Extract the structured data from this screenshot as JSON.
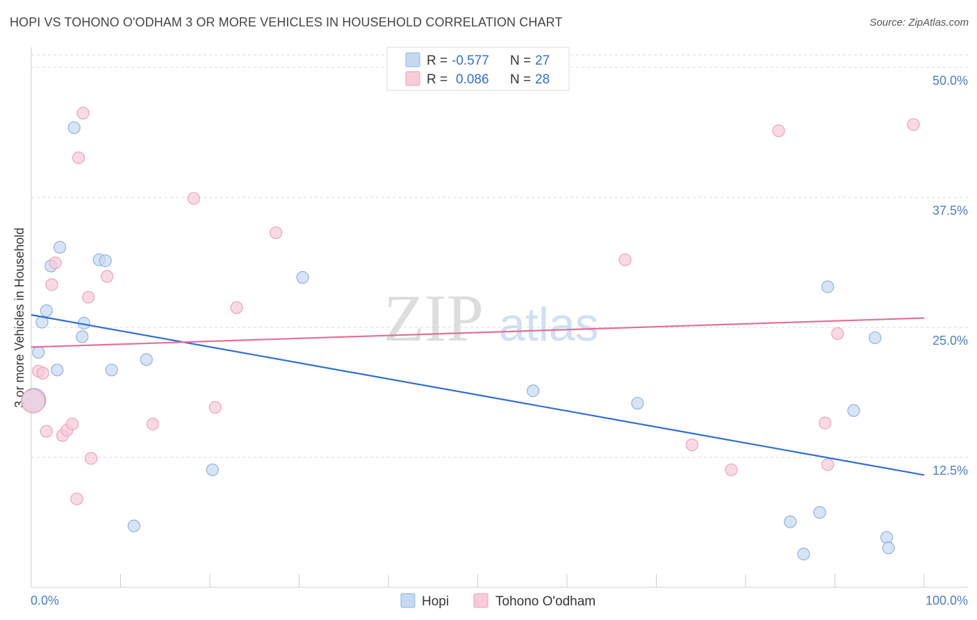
{
  "title": "HOPI VS TOHONO O'ODHAM 3 OR MORE VEHICLES IN HOUSEHOLD CORRELATION CHART",
  "source": "Source: ZipAtlas.com",
  "watermark": {
    "zip": "ZIP",
    "atlas": "atlas"
  },
  "colors": {
    "hopi_fill": "#c5d9f2",
    "hopi_stroke": "#8fb2e0",
    "hopi_line": "#2e6fd1",
    "tohono_fill": "#f7cbd8",
    "tohono_stroke": "#eba3ba",
    "tohono_line": "#e0709a",
    "tick": "#4a7cc4",
    "grid": "#d9d9d9"
  },
  "chart_data": {
    "type": "scatter",
    "title": "HOPI VS TOHONO O'ODHAM 3 OR MORE VEHICLES IN HOUSEHOLD CORRELATION CHART",
    "xlabel": "",
    "ylabel": "3 or more Vehicles in Household",
    "xlim": [
      0,
      100
    ],
    "ylim": [
      0,
      52
    ],
    "x_tick_labels": [
      "0.0%",
      "100.0%"
    ],
    "y_ticks": [
      12.5,
      25.0,
      37.5,
      50.0
    ],
    "y_tick_labels": [
      "12.5%",
      "25.0%",
      "37.5%",
      "50.0%"
    ],
    "grid": true,
    "legend_top": [
      {
        "series": "Hopi",
        "r_label": "R =",
        "r_value": "-0.577",
        "n_label": "N =",
        "n_value": "27"
      },
      {
        "series": "Tohono O'odham",
        "r_label": "R =",
        "r_value": "0.086",
        "n_label": "N =",
        "n_value": "28"
      }
    ],
    "legend_bottom": [
      "Hopi",
      "Tohono O'odham"
    ],
    "series": [
      {
        "name": "Hopi",
        "trend": {
          "x": [
            0,
            100
          ],
          "y": [
            26.2,
            10.8
          ]
        },
        "points": [
          {
            "x": 0.3,
            "y": 18.0,
            "big": true
          },
          {
            "x": 0.8,
            "y": 22.6
          },
          {
            "x": 1.2,
            "y": 25.5
          },
          {
            "x": 1.7,
            "y": 26.6
          },
          {
            "x": 2.2,
            "y": 30.9
          },
          {
            "x": 2.9,
            "y": 20.9
          },
          {
            "x": 3.2,
            "y": 32.7
          },
          {
            "x": 4.8,
            "y": 44.2
          },
          {
            "x": 5.7,
            "y": 24.1
          },
          {
            "x": 5.9,
            "y": 25.4
          },
          {
            "x": 7.6,
            "y": 31.5
          },
          {
            "x": 8.3,
            "y": 31.4
          },
          {
            "x": 9.0,
            "y": 20.9
          },
          {
            "x": 11.5,
            "y": 5.9
          },
          {
            "x": 12.9,
            "y": 21.9
          },
          {
            "x": 20.3,
            "y": 11.3
          },
          {
            "x": 30.4,
            "y": 29.8
          },
          {
            "x": 56.2,
            "y": 18.9
          },
          {
            "x": 67.9,
            "y": 17.7
          },
          {
            "x": 85.0,
            "y": 6.3
          },
          {
            "x": 86.5,
            "y": 3.2
          },
          {
            "x": 88.3,
            "y": 7.2
          },
          {
            "x": 89.2,
            "y": 28.9
          },
          {
            "x": 92.1,
            "y": 17.0
          },
          {
            "x": 94.5,
            "y": 24.0
          },
          {
            "x": 95.8,
            "y": 4.8
          },
          {
            "x": 96.0,
            "y": 3.8
          }
        ]
      },
      {
        "name": "Tohono O'odham",
        "trend": {
          "x": [
            0,
            100
          ],
          "y": [
            23.1,
            25.9
          ]
        },
        "points": [
          {
            "x": 0.2,
            "y": 17.9,
            "big": true
          },
          {
            "x": 0.8,
            "y": 20.8
          },
          {
            "x": 1.3,
            "y": 20.6
          },
          {
            "x": 1.7,
            "y": 15.0
          },
          {
            "x": 2.3,
            "y": 29.1
          },
          {
            "x": 2.7,
            "y": 31.2
          },
          {
            "x": 3.5,
            "y": 14.6
          },
          {
            "x": 4.0,
            "y": 15.1
          },
          {
            "x": 4.6,
            "y": 15.7
          },
          {
            "x": 5.1,
            "y": 8.5
          },
          {
            "x": 5.3,
            "y": 41.3
          },
          {
            "x": 5.8,
            "y": 45.6
          },
          {
            "x": 6.4,
            "y": 27.9
          },
          {
            "x": 6.7,
            "y": 12.4
          },
          {
            "x": 8.5,
            "y": 29.9
          },
          {
            "x": 13.6,
            "y": 15.7
          },
          {
            "x": 18.2,
            "y": 37.4
          },
          {
            "x": 20.6,
            "y": 17.3
          },
          {
            "x": 23.0,
            "y": 26.9
          },
          {
            "x": 27.4,
            "y": 34.1
          },
          {
            "x": 66.5,
            "y": 31.5
          },
          {
            "x": 74.0,
            "y": 13.7
          },
          {
            "x": 78.4,
            "y": 11.3
          },
          {
            "x": 83.7,
            "y": 43.9
          },
          {
            "x": 88.9,
            "y": 15.8
          },
          {
            "x": 89.2,
            "y": 11.8
          },
          {
            "x": 90.3,
            "y": 24.4
          },
          {
            "x": 98.8,
            "y": 44.5
          }
        ]
      }
    ]
  }
}
